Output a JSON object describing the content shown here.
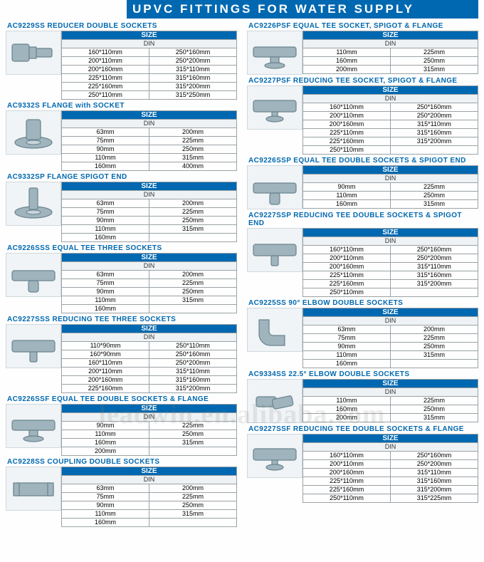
{
  "page_title": "UPVC FITTINGS FOR WATER SUPPLY",
  "size_label": "SIZE",
  "din_label": "DIN",
  "watermark": "leadwin.en.alibaba.com",
  "colors": {
    "brand_blue": "#0068b0",
    "border": "#9aa2a6",
    "din_bg": "#eef2f4",
    "fitting_fill": "#9fb4bd",
    "fitting_stroke": "#6a838e"
  },
  "left": [
    {
      "code": "AC9229SS REDUCER DOUBLE SOCKETS",
      "shape": "reducer",
      "rows": [
        [
          "160*110mm",
          "250*160mm"
        ],
        [
          "200*110mm",
          "250*200mm"
        ],
        [
          "200*160mm",
          "315*110mm"
        ],
        [
          "225*110mm",
          "315*160mm"
        ],
        [
          "225*160mm",
          "315*200mm"
        ],
        [
          "250*110mm",
          "315*250mm"
        ]
      ]
    },
    {
      "code": "AC9332S FLANGE with SOCKET",
      "shape": "flange-socket",
      "rows": [
        [
          "63mm",
          "200mm"
        ],
        [
          "75mm",
          "225mm"
        ],
        [
          "90mm",
          "250mm"
        ],
        [
          "110mm",
          "315mm"
        ],
        [
          "160mm",
          "400mm"
        ]
      ]
    },
    {
      "code": "AC9332SP FLANGE SPIGOT END",
      "shape": "flange-spigot",
      "rows": [
        [
          "63mm",
          "200mm"
        ],
        [
          "75mm",
          "225mm"
        ],
        [
          "90mm",
          "250mm"
        ],
        [
          "110mm",
          "315mm"
        ],
        [
          "160mm",
          ""
        ]
      ]
    },
    {
      "code": "AC9226SSS EQUAL TEE THREE SOCKETS",
      "shape": "tee",
      "rows": [
        [
          "63mm",
          "200mm"
        ],
        [
          "75mm",
          "225mm"
        ],
        [
          "90mm",
          "250mm"
        ],
        [
          "110mm",
          "315mm"
        ],
        [
          "160mm",
          ""
        ]
      ]
    },
    {
      "code": "AC9227SSS REDUCING TEE THREE SOCKETS",
      "shape": "tee-reduce",
      "rows": [
        [
          "110*90mm",
          "250*110mm"
        ],
        [
          "160*90mm",
          "250*160mm"
        ],
        [
          "160*110mm",
          "250*200mm"
        ],
        [
          "200*110mm",
          "315*110mm"
        ],
        [
          "200*160mm",
          "315*160mm"
        ],
        [
          "225*160mm",
          "315*200mm"
        ]
      ]
    },
    {
      "code": "AC9226SSF EQUAL TEE DOUBLE SOCKETS & FLANGE",
      "shape": "tee-flange",
      "rows": [
        [
          "90mm",
          "225mm"
        ],
        [
          "110mm",
          "250mm"
        ],
        [
          "160mm",
          "315mm"
        ],
        [
          "200mm",
          ""
        ]
      ]
    },
    {
      "code": "AC9228SS COUPLING DOUBLE SOCKETS",
      "shape": "coupling",
      "rows": [
        [
          "63mm",
          "200mm"
        ],
        [
          "75mm",
          "225mm"
        ],
        [
          "90mm",
          "250mm"
        ],
        [
          "110mm",
          "315mm"
        ],
        [
          "160mm",
          ""
        ]
      ]
    }
  ],
  "right": [
    {
      "code": "AC9226PSF EQUAL TEE SOCKET, SPIGOT & FLANGE",
      "shape": "tee-flange",
      "rows": [
        [
          "110mm",
          "225mm"
        ],
        [
          "160mm",
          "250mm"
        ],
        [
          "200mm",
          "315mm"
        ]
      ]
    },
    {
      "code": "AC9227PSF REDUCING TEE SOCKET, SPIGOT & FLANGE",
      "shape": "tee-flange-reduce",
      "rows": [
        [
          "160*110mm",
          "250*160mm"
        ],
        [
          "200*110mm",
          "250*200mm"
        ],
        [
          "200*160mm",
          "315*110mm"
        ],
        [
          "225*110mm",
          "315*160mm"
        ],
        [
          "225*160mm",
          "315*200mm"
        ],
        [
          "250*110mm",
          ""
        ]
      ]
    },
    {
      "code": "AC9226SSP EQUAL TEE DOUBLE SOCKETS & SPIGOT END",
      "shape": "tee",
      "rows": [
        [
          "90mm",
          "225mm"
        ],
        [
          "110mm",
          "250mm"
        ],
        [
          "160mm",
          "315mm"
        ]
      ]
    },
    {
      "code": "AC9227SSP REDUCING TEE DOUBLE SOCKETS & SPIGOT END",
      "shape": "tee-reduce",
      "rows": [
        [
          "160*110mm",
          "250*160mm"
        ],
        [
          "200*110mm",
          "250*200mm"
        ],
        [
          "200*160mm",
          "315*110mm"
        ],
        [
          "225*110mm",
          "315*160mm"
        ],
        [
          "225*160mm",
          "315*200mm"
        ],
        [
          "250*110mm",
          ""
        ]
      ]
    },
    {
      "code": "AC9225SS 90° ELBOW DOUBLE SOCKETS",
      "shape": "elbow90",
      "rows": [
        [
          "63mm",
          "200mm"
        ],
        [
          "75mm",
          "225mm"
        ],
        [
          "90mm",
          "250mm"
        ],
        [
          "110mm",
          "315mm"
        ],
        [
          "160mm",
          ""
        ]
      ]
    },
    {
      "code": "AC9334SS 22.5° ELBOW DOUBLE SOCKETS",
      "shape": "elbow22",
      "rows": [
        [
          "110mm",
          "225mm"
        ],
        [
          "160mm",
          "250mm"
        ],
        [
          "200mm",
          "315mm"
        ]
      ]
    },
    {
      "code": "AC9227SSF REDUCING TEE DOUBLE SOCKETS & FLANGE",
      "shape": "tee-flange-reduce",
      "rows": [
        [
          "160*110mm",
          "250*160mm"
        ],
        [
          "200*110mm",
          "250*200mm"
        ],
        [
          "200*160mm",
          "315*110mm"
        ],
        [
          "225*110mm",
          "315*160mm"
        ],
        [
          "225*160mm",
          "315*200mm"
        ],
        [
          "250*110mm",
          "315*225mm"
        ]
      ]
    }
  ]
}
